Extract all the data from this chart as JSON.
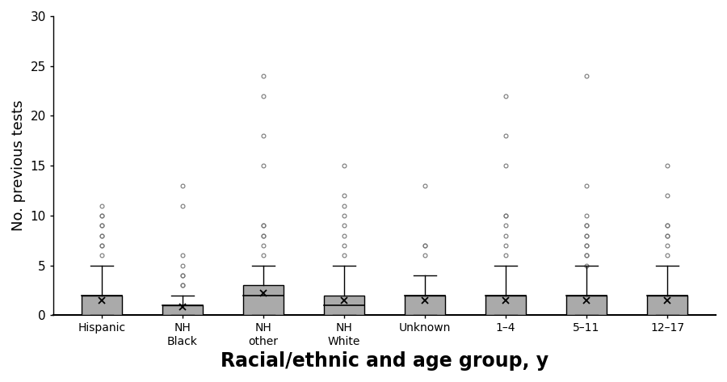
{
  "categories": [
    "Hispanic",
    "NH\nBlack",
    "NH\nother",
    "NH\nWhite",
    "Unknown",
    "1–4",
    "5–11",
    "12–17"
  ],
  "xlabel": "Racial/ethnic and age group, y",
  "ylabel": "No. previous tests",
  "ylim": [
    0,
    30
  ],
  "yticks": [
    0,
    5,
    10,
    15,
    20,
    25,
    30
  ],
  "box_color": "#aaaaaa",
  "flier_color": "#777777",
  "xlabel_fontsize": 17,
  "ylabel_fontsize": 13,
  "tick_fontsize": 11,
  "box_stats": [
    {
      "med": 2,
      "q1": 0,
      "q3": 2,
      "whislo": 0,
      "whishi": 5,
      "mean": 1.5,
      "fliers": [
        6,
        7,
        7,
        8,
        8,
        9,
        9,
        10,
        10,
        11
      ]
    },
    {
      "med": 1,
      "q1": 0,
      "q3": 1,
      "whislo": 0,
      "whishi": 2,
      "mean": 0.8,
      "fliers": [
        3,
        3,
        4,
        4,
        5,
        6,
        11,
        13
      ]
    },
    {
      "med": 2,
      "q1": 0,
      "q3": 3,
      "whislo": 0,
      "whishi": 5,
      "mean": 2.2,
      "fliers": [
        6,
        7,
        8,
        8,
        9,
        9,
        15,
        18,
        22,
        24
      ]
    },
    {
      "med": 1,
      "q1": 0,
      "q3": 2,
      "whislo": 0,
      "whishi": 5,
      "mean": 1.5,
      "fliers": [
        6,
        7,
        8,
        9,
        10,
        11,
        12,
        15
      ]
    },
    {
      "med": 2,
      "q1": 0,
      "q3": 2,
      "whislo": 0,
      "whishi": 4,
      "mean": 1.5,
      "fliers": [
        6,
        7,
        7,
        13
      ]
    },
    {
      "med": 2,
      "q1": 0,
      "q3": 2,
      "whislo": 0,
      "whishi": 5,
      "mean": 1.5,
      "fliers": [
        6,
        7,
        8,
        9,
        10,
        10,
        15,
        18,
        22
      ]
    },
    {
      "med": 2,
      "q1": 0,
      "q3": 2,
      "whislo": 0,
      "whishi": 5,
      "mean": 1.5,
      "fliers": [
        5,
        6,
        6,
        7,
        7,
        8,
        8,
        9,
        9,
        10,
        13,
        24
      ]
    },
    {
      "med": 2,
      "q1": 0,
      "q3": 2,
      "whislo": 0,
      "whishi": 5,
      "mean": 1.5,
      "fliers": [
        6,
        7,
        8,
        8,
        9,
        9,
        12,
        15
      ]
    }
  ]
}
